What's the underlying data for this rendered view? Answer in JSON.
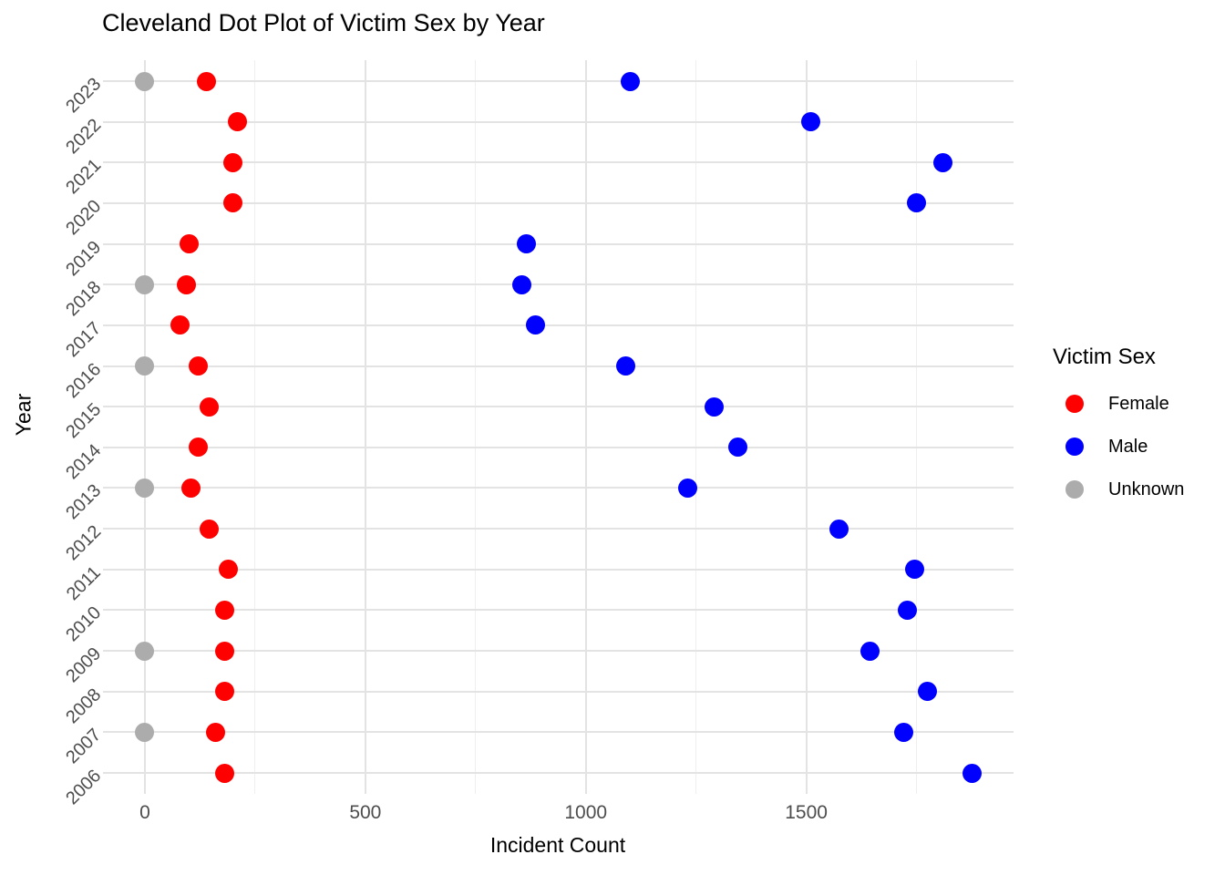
{
  "chart_data": {
    "type": "scatter",
    "variant": "cleveland-dot-plot",
    "title": "Cleveland Dot Plot of Victim Sex by Year",
    "xlabel": "Incident Count",
    "ylabel": "Year",
    "categories": [
      "2023",
      "2022",
      "2021",
      "2020",
      "2019",
      "2018",
      "2017",
      "2016",
      "2015",
      "2014",
      "2013",
      "2012",
      "2011",
      "2010",
      "2009",
      "2008",
      "2007",
      "2006"
    ],
    "x_ticks": [
      0,
      500,
      1000,
      1500
    ],
    "x_tick_labels": [
      "0",
      "500",
      "1000",
      "1500"
    ],
    "x_minor_ticks": [
      250,
      750,
      1250,
      1750
    ],
    "xlim": [
      -95,
      1970
    ],
    "grid": true,
    "legend_position": "right",
    "legend": {
      "title": "Victim Sex",
      "entries": [
        {
          "label": "Female",
          "color": "#FF0000"
        },
        {
          "label": "Male",
          "color": "#0000FF"
        },
        {
          "label": "Unknown",
          "color": "#ACACAC"
        }
      ]
    },
    "series": [
      {
        "name": "Female",
        "color": "#FF0000",
        "values": [
          140,
          210,
          200,
          200,
          100,
          95,
          80,
          120,
          145,
          120,
          105,
          145,
          190,
          180,
          180,
          180,
          160,
          180
        ]
      },
      {
        "name": "Male",
        "color": "#0000FF",
        "values": [
          1100,
          1510,
          1810,
          1750,
          865,
          855,
          885,
          1090,
          1290,
          1345,
          1230,
          1575,
          1745,
          1730,
          1645,
          1775,
          1720,
          1875
        ]
      },
      {
        "name": "Unknown",
        "color": "#ACACAC",
        "values": [
          0,
          null,
          null,
          null,
          null,
          0,
          null,
          0,
          null,
          null,
          0,
          null,
          null,
          null,
          0,
          null,
          0,
          null
        ]
      }
    ]
  },
  "colors": {
    "background": "#FFFFFF",
    "grid_major": "#E3E3E3",
    "grid_minor": "#EFEFEF",
    "tick_label": "#4D4D4D",
    "text": "#000000"
  }
}
